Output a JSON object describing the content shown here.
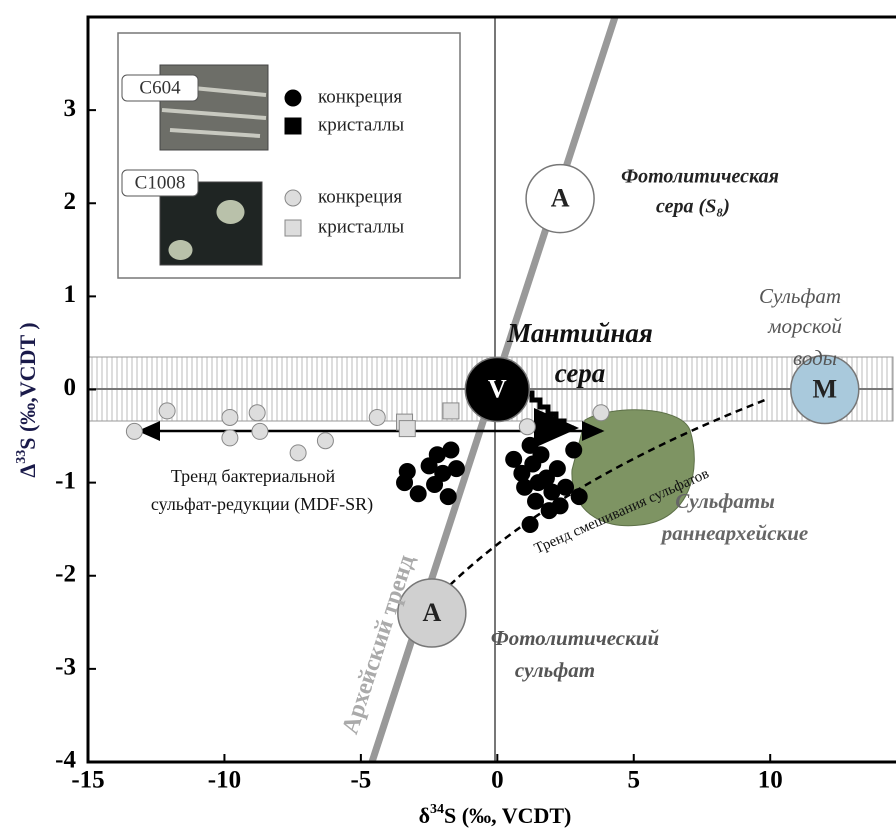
{
  "chart_data": {
    "type": "scatter",
    "x_label": [
      "δ",
      "34",
      "S (‰, VCDT)"
    ],
    "y_label": [
      "Δ",
      "33",
      "S (‰,VCDT )"
    ],
    "xlim": [
      -15,
      14.5
    ],
    "ylim": [
      -4,
      4
    ],
    "xticks": [
      -15,
      -10,
      -5,
      0,
      5,
      10
    ],
    "yticks": [
      -4,
      -3,
      -2,
      -1,
      0,
      1,
      2,
      3
    ],
    "series": [
      {
        "name": "конкреция",
        "sample": "C604",
        "marker": "circle",
        "color": "#000000",
        "x": [
          -3.3,
          -3.4,
          -2.9,
          -2.5,
          -2.2,
          -2.0,
          -1.7,
          -1.5,
          -2.3,
          -1.8,
          0.6,
          0.9,
          1.2,
          1.3,
          1.5,
          1.6,
          1.8,
          2.0,
          1.4,
          1.2,
          2.2,
          2.5,
          2.8,
          3.0,
          1.9,
          1.0,
          2.3
        ],
        "values": [
          -0.88,
          -1.0,
          -1.12,
          -0.82,
          -0.7,
          -0.9,
          -0.65,
          -0.85,
          -1.02,
          -1.15,
          -0.75,
          -0.9,
          -0.6,
          -0.8,
          -1.0,
          -0.7,
          -0.95,
          -1.1,
          -1.2,
          -1.45,
          -0.85,
          -1.05,
          -0.65,
          -1.15,
          -1.3,
          -1.05,
          -1.25
        ]
      },
      {
        "name": "кристаллы",
        "sample": "C604",
        "marker": "square",
        "color": "#000000",
        "x": [],
        "values": []
      },
      {
        "name": "конкреция",
        "sample": "C1008",
        "marker": "circle",
        "color": "#dddddd",
        "x": [
          -13.3,
          -12.1,
          -9.8,
          -9.8,
          -8.8,
          -8.7,
          -7.3,
          -6.3,
          -4.4,
          3.8,
          1.1
        ],
        "values": [
          -0.45,
          -0.23,
          -0.3,
          -0.52,
          -0.25,
          -0.45,
          -0.68,
          -0.55,
          -0.3,
          -0.25,
          -0.4
        ]
      },
      {
        "name": "кристаллы",
        "sample": "C1008",
        "marker": "square",
        "color": "#dddddd",
        "x": [
          -3.4,
          -3.3,
          -1.7
        ],
        "values": [
          -0.35,
          -0.42,
          -0.23
        ]
      }
    ],
    "samples": [
      "C604",
      "C1008"
    ],
    "endmembers": [
      {
        "label": "V",
        "x": 0,
        "y": 0,
        "color": "#000000"
      },
      {
        "label": "A",
        "x": 2.3,
        "y": 2.05,
        "color": "#ffffff"
      },
      {
        "label": "A",
        "x": -2.4,
        "y": -2.4,
        "color": "#d0d0d0"
      },
      {
        "label": "M",
        "x": 12,
        "y": 0,
        "color": "#a9c9dc"
      }
    ],
    "annotations": [
      "Фотолитическая",
      "сера (S₈)",
      "Мантийная",
      "сера",
      "Сульфат",
      "морской",
      "воды",
      "Тренд бактериальной",
      "сульфат-редукции (MDF-SR)",
      "Архейский тренд",
      "Тренд смешивания сульфатов",
      "Сульфаты",
      "раннеархейские",
      "Фотолитический",
      "сульфат"
    ]
  }
}
